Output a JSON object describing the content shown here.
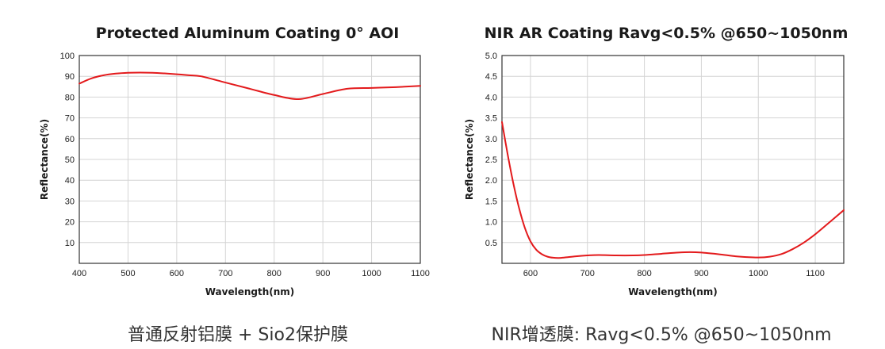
{
  "chart_data": [
    {
      "type": "line",
      "title": "Protected Aluminum Coating 0° AOI",
      "xlabel": "Wavelength(nm)",
      "ylabel": "Reflectance(%)",
      "xlim": [
        400,
        1100
      ],
      "ylim": [
        0,
        100
      ],
      "xticks": [
        "400",
        "500",
        "600",
        "700",
        "800",
        "900",
        "1000",
        "1100"
      ],
      "yticks": [
        "10",
        "20",
        "30",
        "40",
        "50",
        "60",
        "70",
        "80",
        "90",
        "100"
      ],
      "grid": true,
      "series": [
        {
          "color": "#e31a1c",
          "x": [
            400,
            425,
            450,
            475,
            500,
            525,
            550,
            575,
            600,
            625,
            650,
            700,
            750,
            800,
            850,
            900,
            950,
            1000,
            1050,
            1100
          ],
          "y": [
            86.5,
            89,
            90.5,
            91.3,
            91.7,
            91.8,
            91.7,
            91.4,
            91,
            90.5,
            90,
            87,
            84,
            81,
            79,
            81.5,
            84,
            84.4,
            84.8,
            85.4
          ]
        }
      ]
    },
    {
      "type": "line",
      "title": "NIR AR Coating Ravg<0.5% @650~1050nm",
      "xlabel": "Wavelength(nm)",
      "ylabel": "Reflectance(%)",
      "xlim": [
        550,
        1150
      ],
      "ylim": [
        0,
        5.0
      ],
      "xticks": [
        "600",
        "700",
        "800",
        "900",
        "1000",
        "1100"
      ],
      "yticks": [
        "0.5",
        "1.0",
        "1.5",
        "2.0",
        "2.5",
        "3.0",
        "3.5",
        "4.0",
        "4.5",
        "5.0"
      ],
      "grid": true,
      "series": [
        {
          "color": "#e31a1c",
          "x": [
            550,
            560,
            570,
            580,
            590,
            600,
            610,
            620,
            630,
            640,
            650,
            660,
            680,
            700,
            720,
            750,
            780,
            800,
            830,
            860,
            880,
            900,
            930,
            960,
            980,
            1000,
            1020,
            1040,
            1060,
            1080,
            1100,
            1120,
            1150
          ],
          "y": [
            3.4,
            2.62,
            1.92,
            1.33,
            0.86,
            0.53,
            0.33,
            0.22,
            0.16,
            0.135,
            0.13,
            0.14,
            0.17,
            0.19,
            0.2,
            0.19,
            0.19,
            0.2,
            0.23,
            0.26,
            0.27,
            0.26,
            0.22,
            0.17,
            0.15,
            0.14,
            0.16,
            0.22,
            0.34,
            0.5,
            0.7,
            0.93,
            1.28
          ]
        }
      ]
    }
  ],
  "captions": {
    "left": "普通反射铝膜 + Sio2保护膜",
    "right": "NIR增透膜: Ravg<0.5% @650~1050nm"
  }
}
